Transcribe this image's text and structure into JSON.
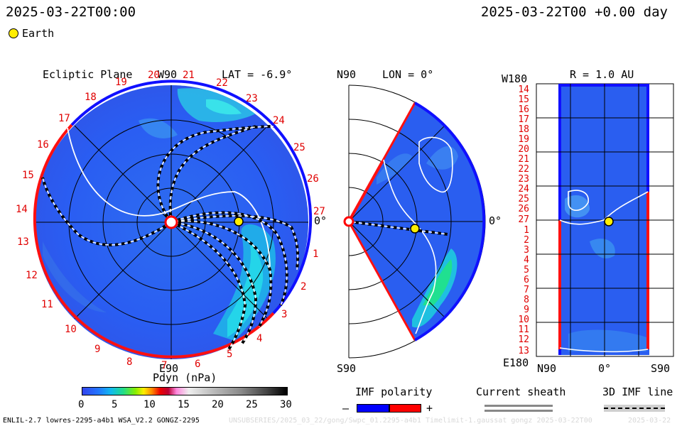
{
  "header": {
    "timestamp_left": "2025-03-22T00:00",
    "timestamp_right": "2025-03-22T00 +0.00 day"
  },
  "legend": {
    "earth_label": "Earth",
    "earth_color": "#ffee00"
  },
  "ecliptic": {
    "title": "Ecliptic Plane",
    "lat_label": "LAT = -6.9°",
    "top_label": "W90",
    "bottom_label": "E90",
    "right_label": "0°",
    "rotation_numbers": [
      "1",
      "2",
      "3",
      "4",
      "5",
      "6",
      "7",
      "8",
      "9",
      "10",
      "11",
      "12",
      "13",
      "14",
      "15",
      "16",
      "17",
      "18",
      "19",
      "20",
      "21",
      "22",
      "23",
      "24",
      "25",
      "26",
      "27"
    ]
  },
  "meridional": {
    "title": "LON = 0°",
    "top_label": "N90",
    "bottom_label": "S90",
    "right_label": "0°"
  },
  "radial": {
    "title": "R = 1.0 AU",
    "top_label": "W180",
    "bottom_label": "E180",
    "x_labels": [
      "N90",
      "0°",
      "S90"
    ],
    "y_labels": [
      "14",
      "15",
      "16",
      "17",
      "18",
      "19",
      "20",
      "21",
      "22",
      "23",
      "24",
      "25",
      "26",
      "27",
      "1",
      "2",
      "3",
      "4",
      "5",
      "6",
      "7",
      "8",
      "9",
      "10",
      "11",
      "12",
      "13"
    ]
  },
  "colorbar": {
    "title": "Pdyn (nPa)",
    "ticks": [
      "0",
      "5",
      "10",
      "15",
      "20",
      "25",
      "30"
    ]
  },
  "imf_polarity": {
    "title": "IMF polarity",
    "minus": "–",
    "plus": "+",
    "neg_color": "#0000ff",
    "pos_color": "#ff0000"
  },
  "current_sheath": {
    "title": "Current sheath"
  },
  "imf_line": {
    "title": "3D IMF line"
  },
  "footer": {
    "model_info": "ENLIL-2.7 lowres-2295-a4b1 WSA_V2.2 GONGZ-2295",
    "run_id": "UNSUBSERIES/2025_03_22/gong/Swpc_01.2295-a4b1 Timelimit-1.gaussat gongz 2025-03-22T00",
    "date_stub": "2025-03-22"
  }
}
